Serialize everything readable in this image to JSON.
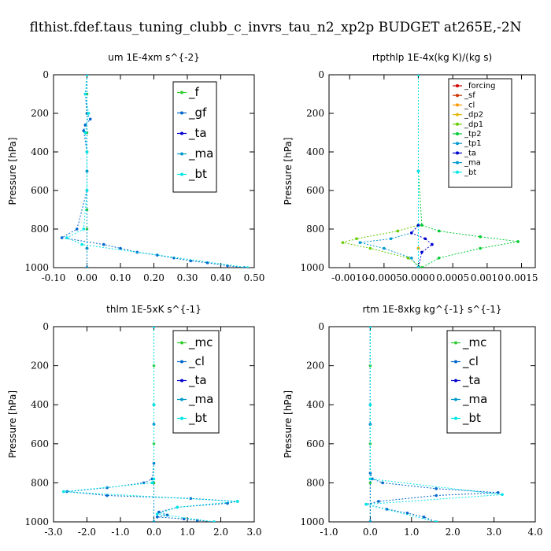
{
  "figure": {
    "title": "flthist.fdef.taus_tuning_clubb_c_invrs_tau_n2_xp2p  BUDGET at265E,-2N"
  },
  "chart_data": [
    {
      "type": "line",
      "title": "um   1E-4xm  s^{-2}",
      "ylabel": "Pressure [hPa]",
      "xlim": [
        -0.1,
        0.5
      ],
      "ylim": [
        1000,
        0
      ],
      "xticks": [
        "-0.10",
        "0.00",
        "0.10",
        "0.20",
        "0.30",
        "0.40",
        "0.50"
      ],
      "yticks": [
        "0",
        "200",
        "400",
        "600",
        "800",
        "1000"
      ],
      "legend": "top-right",
      "series": [
        {
          "name": "_f",
          "color": "#33cc33",
          "x": [
            0,
            0,
            0,
            0,
            0,
            0,
            0,
            0,
            0,
            0,
            0
          ],
          "y": [
            0,
            100,
            200,
            300,
            400,
            500,
            600,
            700,
            800,
            900,
            1000
          ]
        },
        {
          "name": "_gf",
          "color": "#0066cc",
          "x": [
            0,
            -0.005,
            0,
            0.01,
            -0.005,
            -0.01,
            0,
            0,
            -0.03,
            -0.075,
            0.05,
            0.1,
            0.15,
            0.21,
            0.26,
            0.31,
            0.36,
            0.42,
            0.47
          ],
          "y": [
            0,
            100,
            200,
            230,
            260,
            290,
            400,
            600,
            800,
            845,
            880,
            900,
            920,
            935,
            950,
            965,
            975,
            990,
            1000
          ]
        },
        {
          "name": "_ta",
          "color": "#0000cc",
          "x": [
            0,
            0,
            0,
            0
          ],
          "y": [
            0,
            500,
            900,
            1000
          ]
        },
        {
          "name": "_ma",
          "color": "#0099cc",
          "x": [
            0,
            0,
            0,
            0
          ],
          "y": [
            0,
            500,
            900,
            1000
          ]
        },
        {
          "name": "_bt",
          "color": "#00e6e6",
          "x": [
            0,
            -0.005,
            0.005,
            -0.005,
            0,
            0,
            -0.01,
            -0.06,
            -0.015,
            0.48
          ],
          "y": [
            0,
            100,
            200,
            300,
            400,
            600,
            800,
            845,
            880,
            1000
          ]
        }
      ]
    },
    {
      "type": "line",
      "title": "rtpthlp   1E-4x(kg K)/(kg s)",
      "ylabel": "Pressure [hPa]",
      "xlim": [
        -0.0013,
        0.0017
      ],
      "ylim": [
        1000,
        0
      ],
      "xticks": [
        "-0.0010",
        "-0.0005",
        "0.0000",
        "0.0005",
        "0.0010",
        "0.0015"
      ],
      "yticks": [
        "0",
        "200",
        "400",
        "600",
        "800",
        "1000"
      ],
      "legend": "top-right",
      "series": [
        {
          "name": "_forcing",
          "color": "#cc0000",
          "x": [
            0,
            0,
            0,
            0
          ],
          "y": [
            0,
            500,
            900,
            1000
          ]
        },
        {
          "name": "_sf",
          "color": "#cc3300",
          "x": [
            0,
            0,
            0,
            0
          ],
          "y": [
            0,
            500,
            900,
            1000
          ]
        },
        {
          "name": "_cl",
          "color": "#ff9900",
          "x": [
            0,
            0,
            0,
            0
          ],
          "y": [
            0,
            500,
            900,
            1000
          ]
        },
        {
          "name": "_dp2",
          "color": "#e6b800",
          "x": [
            0,
            0,
            0,
            0
          ],
          "y": [
            0,
            500,
            900,
            1000
          ]
        },
        {
          "name": "_dp1",
          "color": "#66cc00",
          "x": [
            0,
            0,
            0,
            -0.0003,
            -0.0009,
            -0.0011,
            -0.0007,
            -0.00015,
            5e-05
          ],
          "y": [
            0,
            500,
            780,
            810,
            850,
            870,
            900,
            950,
            1000
          ]
        },
        {
          "name": "_tp2",
          "color": "#00cc33",
          "x": [
            0,
            0,
            5e-05,
            0.0003,
            0.0009,
            0.00145,
            0.0009,
            0.0003,
            5e-05
          ],
          "y": [
            0,
            500,
            780,
            810,
            840,
            865,
            900,
            950,
            1000
          ]
        },
        {
          "name": "_tp1",
          "color": "#0099cc",
          "x": [
            0,
            0,
            0,
            -0.0001,
            -0.0004,
            -0.00085,
            -0.0005,
            -0.0001,
            0
          ],
          "y": [
            0,
            500,
            780,
            820,
            850,
            870,
            900,
            950,
            1000
          ]
        },
        {
          "name": "_ta",
          "color": "#0000cc",
          "x": [
            0,
            0,
            -0.0001,
            0.0001,
            0.0002,
            5e-05,
            0
          ],
          "y": [
            0,
            780,
            820,
            850,
            880,
            920,
            1000
          ]
        },
        {
          "name": "_ma",
          "color": "#0099cc",
          "x": [
            0,
            0,
            0
          ],
          "y": [
            0,
            500,
            1000
          ]
        },
        {
          "name": "_bt",
          "color": "#00e6e6",
          "x": [
            0,
            0,
            0
          ],
          "y": [
            0,
            500,
            1000
          ]
        }
      ]
    },
    {
      "type": "line",
      "title": "thlm   1E-5xK  s^{-1}",
      "ylabel": "Pressure [hPa]",
      "xlim": [
        -3.0,
        3.0
      ],
      "ylim": [
        1000,
        0
      ],
      "xticks": [
        "-3.0",
        "-2.0",
        "-1.0",
        "0.0",
        "1.0",
        "2.0",
        "3.0"
      ],
      "yticks": [
        "0",
        "200",
        "400",
        "600",
        "800",
        "1000"
      ],
      "legend": "top-right",
      "series": [
        {
          "name": "_mc",
          "color": "#33cc33",
          "x": [
            0,
            0,
            0,
            0,
            0,
            0
          ],
          "y": [
            0,
            200,
            400,
            600,
            800,
            1000
          ]
        },
        {
          "name": "_cl",
          "color": "#0066cc",
          "x": [
            0,
            0,
            0,
            -0.05,
            -0.3,
            -1.4,
            -2.6,
            -1.4,
            1.1,
            2.5,
            2.2,
            0.7,
            0.15,
            0.4,
            0.1,
            0.9,
            1.3,
            1.8
          ],
          "y": [
            0,
            400,
            700,
            780,
            800,
            825,
            845,
            865,
            880,
            895,
            905,
            925,
            950,
            965,
            975,
            985,
            992,
            1000
          ]
        },
        {
          "name": "_ta",
          "color": "#0000cc",
          "x": [
            0,
            0,
            0
          ],
          "y": [
            0,
            500,
            1000
          ]
        },
        {
          "name": "_ma",
          "color": "#0099cc",
          "x": [
            0,
            0,
            0
          ],
          "y": [
            0,
            500,
            1000
          ]
        },
        {
          "name": "_bt",
          "color": "#00e6e6",
          "x": [
            0,
            0,
            0,
            -0.05,
            -2.7,
            2.5,
            0.7,
            0.1,
            1.8
          ],
          "y": [
            0,
            400,
            780,
            800,
            845,
            895,
            925,
            960,
            1000
          ]
        }
      ]
    },
    {
      "type": "line",
      "title": "rtm   1E-8xkg  kg^{-1}  s^{-1}",
      "ylabel": "Pressure [hPa]",
      "xlim": [
        -1.0,
        4.0
      ],
      "ylim": [
        1000,
        0
      ],
      "xticks": [
        "-1.0",
        "0.0",
        "1.0",
        "2.0",
        "3.0",
        "4.0"
      ],
      "yticks": [
        "0",
        "200",
        "400",
        "600",
        "800",
        "1000"
      ],
      "legend": "top-right",
      "series": [
        {
          "name": "_mc",
          "color": "#33cc33",
          "x": [
            0,
            0,
            0,
            0,
            0,
            0
          ],
          "y": [
            0,
            200,
            400,
            600,
            800,
            1000
          ]
        },
        {
          "name": "_cl",
          "color": "#0066cc",
          "x": [
            0,
            0,
            0,
            0.05,
            0.3,
            1.6,
            3.1,
            1.6,
            0.2,
            -0.1,
            0.4,
            0.9,
            1.3,
            1.6
          ],
          "y": [
            0,
            400,
            750,
            780,
            800,
            830,
            850,
            865,
            895,
            910,
            935,
            955,
            975,
            1000
          ]
        },
        {
          "name": "_ta",
          "color": "#0000cc",
          "x": [
            0,
            0,
            0
          ],
          "y": [
            0,
            500,
            1000
          ]
        },
        {
          "name": "_ma",
          "color": "#0099cc",
          "x": [
            0,
            0,
            0
          ],
          "y": [
            0,
            500,
            1000
          ]
        },
        {
          "name": "_bt",
          "color": "#00e6e6",
          "x": [
            0,
            0,
            0,
            3.2,
            -0.1,
            1.6
          ],
          "y": [
            0,
            400,
            780,
            860,
            910,
            1000
          ]
        }
      ]
    }
  ]
}
